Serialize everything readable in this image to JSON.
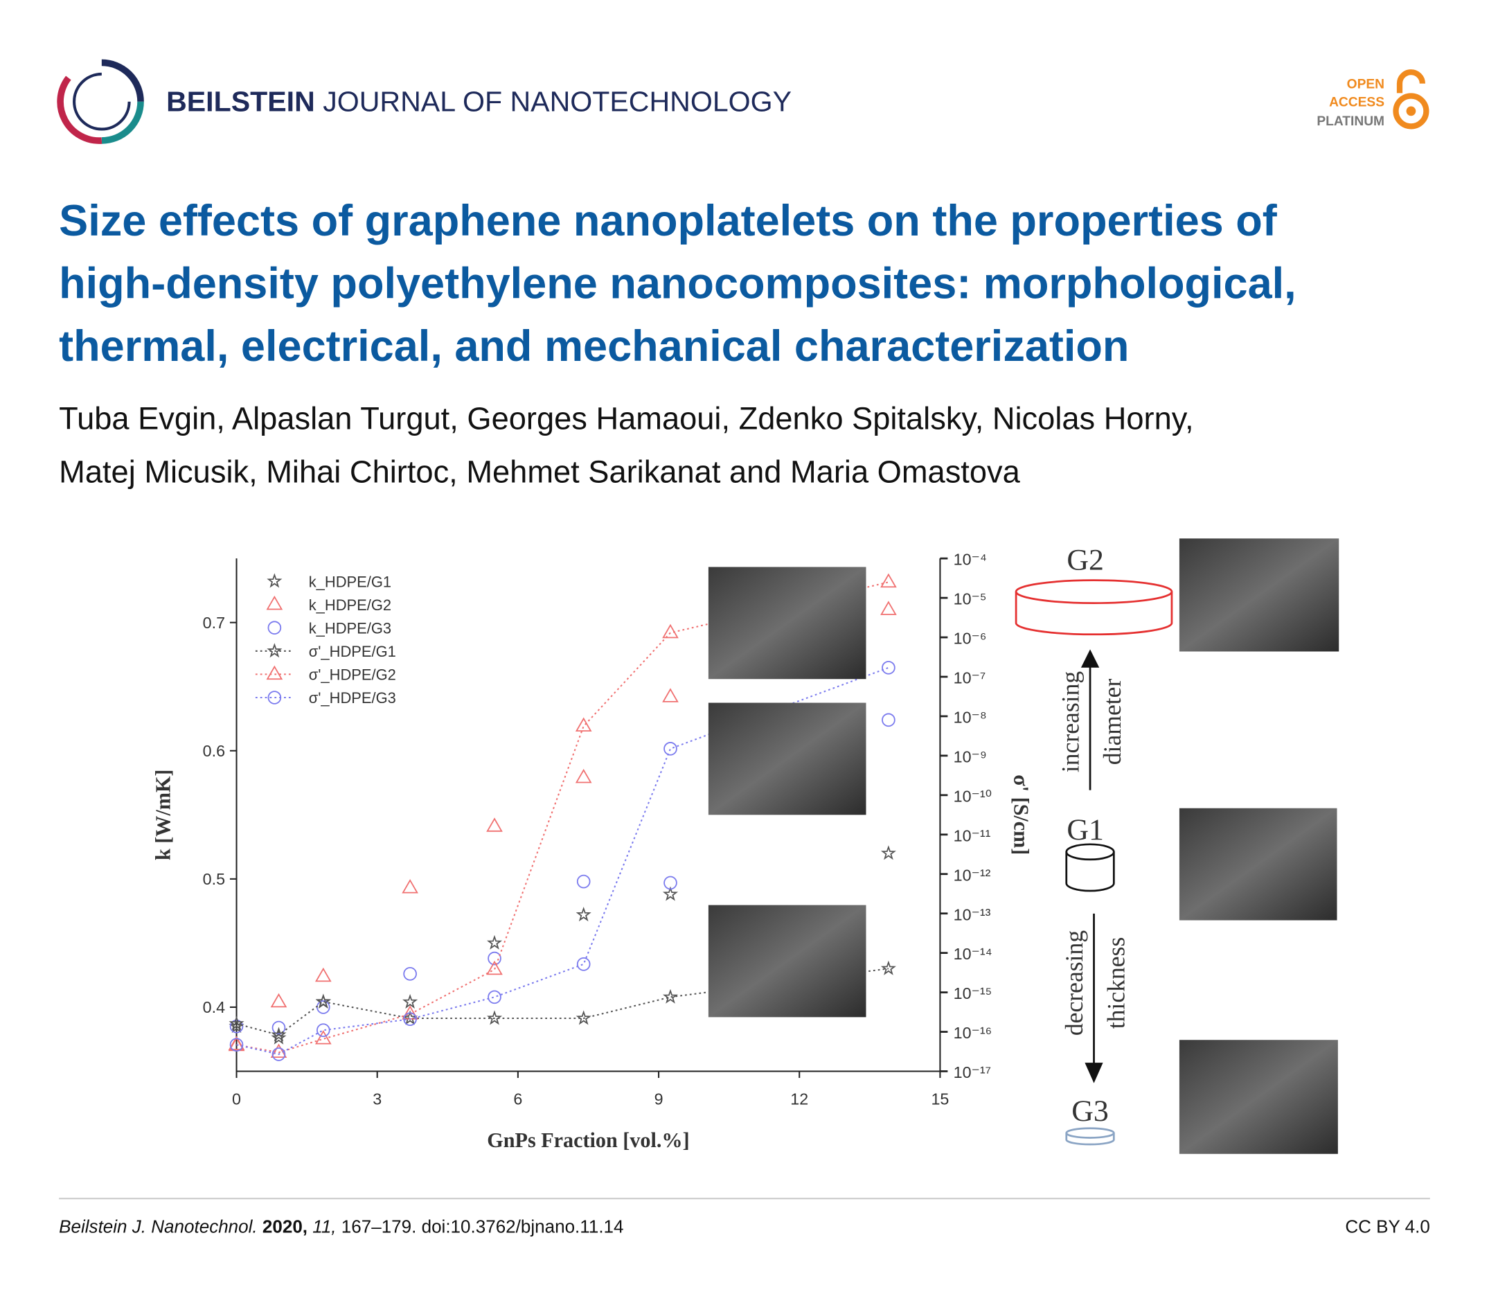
{
  "header": {
    "journal_bold": "BEILSTEIN",
    "journal_rest": "JOURNAL OF NANOTECHNOLOGY",
    "badge": [
      "OPEN",
      "ACCESS",
      "PLATINUM"
    ]
  },
  "title_lines": [
    "Size effects of graphene nanoplatelets on the properties of",
    "high-density polyethylene nanocomposites: morphological,",
    "thermal, electrical, and mechanical characterization"
  ],
  "author_lines": [
    "Tuba Evgin, Alpaslan Turgut, Georges Hamaoui, Zdenko Spitalsky, Nicolas Horny,",
    "Matej Micusik, Mihai Chirtoc, Mehmet Sarikanat and Maria Omastova"
  ],
  "chart_data": {
    "type": "scatter",
    "x_label": "GnPs Fraction [vol.%]",
    "y_label": "k [W/mK]",
    "y2_label": "σ' [S/cm]",
    "x": [
      0,
      0.9,
      1.85,
      3.7,
      5.5,
      7.4,
      9.25,
      13.9
    ],
    "xlim": [
      0,
      15
    ],
    "xticks": [
      0,
      3,
      6,
      9,
      12,
      15
    ],
    "ylim": [
      0.35,
      0.75
    ],
    "yticks": [
      0.4,
      0.5,
      0.6,
      0.7
    ],
    "y2lim": [
      1e-17,
      0.0001
    ],
    "y2_log": true,
    "y2ticks": [
      {
        "value": 1e-17,
        "label": "10⁻¹⁷"
      },
      {
        "value": 1e-16,
        "label": "10⁻¹⁶"
      },
      {
        "value": 1e-15,
        "label": "10⁻¹⁵"
      },
      {
        "value": 1e-14,
        "label": "10⁻¹⁴"
      },
      {
        "value": 1e-13,
        "label": "10⁻¹³"
      },
      {
        "value": 1e-12,
        "label": "10⁻¹²"
      },
      {
        "value": 1e-11,
        "label": "10⁻¹¹"
      },
      {
        "value": 1e-10,
        "label": "10⁻¹⁰"
      },
      {
        "value": 1e-09,
        "label": "10⁻⁹"
      },
      {
        "value": 1e-08,
        "label": "10⁻⁸"
      },
      {
        "value": 1e-07,
        "label": "10⁻⁷"
      },
      {
        "value": 1e-06,
        "label": "10⁻⁶"
      },
      {
        "value": 1e-05,
        "label": "10⁻⁵"
      },
      {
        "value": 0.0001,
        "label": "10⁻⁴"
      }
    ],
    "legend": "upper left",
    "series": [
      {
        "name": "k_HDPE/G1",
        "color": "#555555",
        "marker": "star",
        "dotted": false,
        "values": [
          0.385,
          0.376,
          0.404,
          0.404,
          0.45,
          0.472,
          0.488,
          0.52
        ]
      },
      {
        "name": "k_HDPE/G2",
        "color": "#f07070",
        "marker": "triangle",
        "dotted": false,
        "values": [
          0.37,
          0.404,
          0.424,
          0.493,
          0.541,
          0.579,
          0.642,
          0.71
        ]
      },
      {
        "name": "k_HDPE/G3",
        "color": "#7a7aee",
        "marker": "circle",
        "dotted": false,
        "values": [
          0.385,
          0.384,
          0.4,
          0.426,
          0.438,
          0.498,
          0.497,
          0.624
        ]
      },
      {
        "name": "σ'_HDPE/G1",
        "color": "#555555",
        "marker": "star",
        "dotted": true,
        "axis": "y2",
        "values": [
          1.6e-16,
          8.3e-17,
          5.8e-16,
          2.2e-16,
          2.2e-16,
          2.2e-16,
          7.6e-16,
          4e-15
        ]
      },
      {
        "name": "σ'_HDPE/G2",
        "color": "#f07070",
        "marker": "triangle",
        "dotted": true,
        "axis": "y2",
        "values": [
          4.7e-17,
          3e-17,
          6.6e-17,
          2.8e-16,
          3.8e-15,
          5.6e-09,
          1.3e-06,
          2.5e-05
        ]
      },
      {
        "name": "σ'_HDPE/G3",
        "color": "#7a7aee",
        "marker": "circle",
        "dotted": true,
        "axis": "y2",
        "values": [
          4.7e-17,
          2.7e-17,
          1.1e-16,
          2.1e-16,
          7.6e-16,
          5.2e-15,
          1.5e-09,
          1.7e-07
        ]
      }
    ]
  },
  "diagram": {
    "g2": "G2",
    "g1": "G1",
    "g3": "G3",
    "up_1": "increasing",
    "up_2": "diameter",
    "down_1": "decreasing",
    "down_2": "thickness"
  },
  "footer": {
    "journal": "Beilstein J. Nanotechnol.",
    "year": "2020,",
    "volume": "11,",
    "rest": "167–179. doi:10.3762/bjnano.11.14",
    "license": "CC BY 4.0"
  }
}
